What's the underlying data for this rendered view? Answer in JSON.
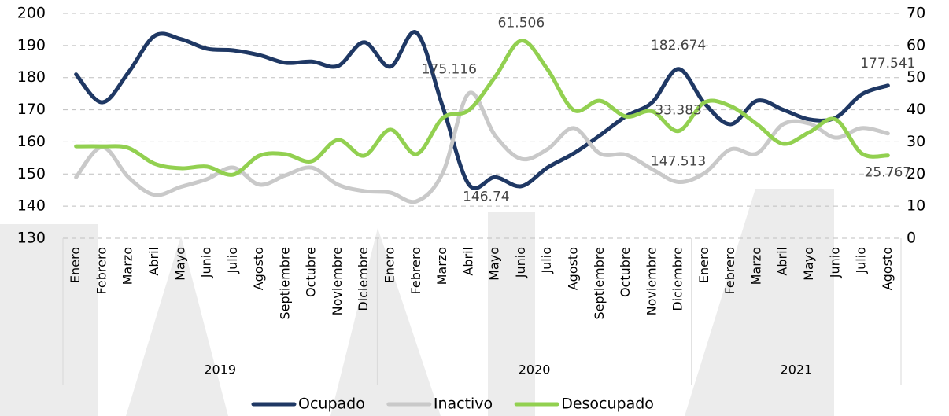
{
  "chart_data": {
    "type": "line",
    "categories": [
      "Enero",
      "Febrero",
      "Marzo",
      "Abril",
      "Mayo",
      "Junio",
      "Julio",
      "Agosto",
      "Septiembre",
      "Octubre",
      "Noviembre",
      "Diciembre",
      "Enero",
      "Febrero",
      "Marzo",
      "Abril",
      "Mayo",
      "Junio",
      "Julio",
      "Agosto",
      "Septiembre",
      "Octubre",
      "Noviembre",
      "Diciembre",
      "Enero",
      "Febrero",
      "Marzo",
      "Abril",
      "Mayo",
      "Junio",
      "Julio",
      "Agosto"
    ],
    "category_groups": [
      {
        "label": "2019",
        "span": 12
      },
      {
        "label": "2020",
        "span": 12
      },
      {
        "label": "2021",
        "span": 8
      }
    ],
    "series": [
      {
        "name": "Ocupado",
        "color": "#1f3864",
        "axis": "y",
        "values": [
          181,
          172.3,
          181.6,
          193,
          192,
          189,
          188.5,
          187,
          184.6,
          185,
          183.6,
          191,
          183.4,
          194,
          171,
          146.74,
          149,
          146.2,
          152,
          156.4,
          162,
          168,
          172.3,
          182.674,
          172,
          165.5,
          172.8,
          170,
          167,
          167.5,
          174.8,
          177.541
        ],
        "value_labels": [
          null,
          null,
          null,
          null,
          null,
          null,
          null,
          null,
          null,
          null,
          null,
          null,
          null,
          null,
          null,
          "146.74",
          null,
          null,
          null,
          null,
          null,
          null,
          null,
          "182.674",
          null,
          null,
          null,
          null,
          null,
          null,
          null,
          "177.541"
        ]
      },
      {
        "name": "Inactivo",
        "color": "#c9c9c9",
        "axis": "y",
        "values": [
          149,
          158.4,
          149,
          143.5,
          146,
          148.4,
          152,
          146.7,
          149.6,
          152,
          146.7,
          144.7,
          144.2,
          141.5,
          150.3,
          175.116,
          162,
          154.7,
          157.7,
          164.3,
          156.4,
          156,
          151.5,
          147.513,
          150.3,
          157.7,
          156.4,
          165.5,
          165.7,
          161.3,
          164.3,
          162.6
        ],
        "value_labels": [
          null,
          null,
          null,
          null,
          null,
          null,
          null,
          null,
          null,
          null,
          null,
          null,
          null,
          null,
          null,
          "175.116",
          null,
          null,
          null,
          null,
          null,
          null,
          null,
          "147.513",
          null,
          null,
          null,
          null,
          null,
          null,
          null,
          null
        ]
      },
      {
        "name": "Desocupado",
        "color": "#92d050",
        "axis": "y2",
        "values": [
          28.6,
          28.6,
          28.1,
          23.2,
          21.8,
          22.3,
          19.8,
          25.7,
          26.2,
          24,
          30.6,
          25.7,
          33.8,
          26.2,
          37.4,
          39.9,
          50.2,
          61.506,
          52.6,
          39.9,
          42.8,
          37.9,
          39.5,
          33.383,
          42.3,
          41.1,
          35.5,
          29.4,
          33,
          37,
          26.4,
          25.767
        ],
        "value_labels": [
          null,
          null,
          null,
          null,
          null,
          null,
          null,
          null,
          null,
          null,
          null,
          null,
          null,
          null,
          null,
          null,
          null,
          "61.506",
          null,
          null,
          null,
          null,
          null,
          "33.383",
          null,
          null,
          null,
          null,
          null,
          null,
          null,
          "25.767"
        ]
      }
    ],
    "ylim": [
      130,
      200
    ],
    "yticks": [
      130,
      140,
      150,
      160,
      170,
      180,
      190,
      200
    ],
    "y2lim": [
      0,
      70
    ],
    "y2ticks": [
      0,
      10,
      20,
      30,
      40,
      50,
      60,
      70
    ],
    "grid": true
  }
}
